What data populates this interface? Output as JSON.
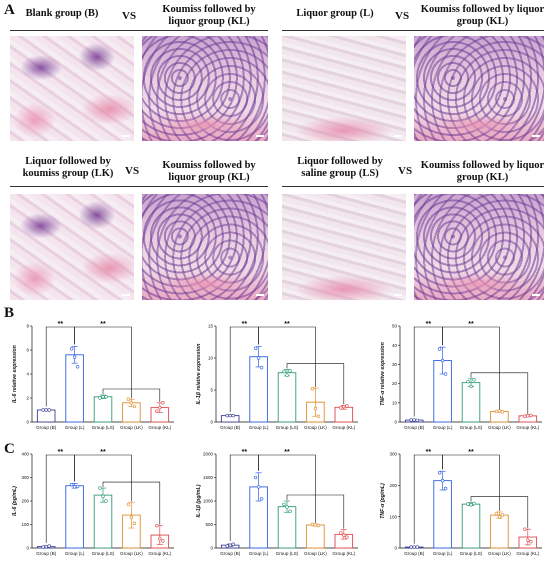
{
  "panels": {
    "A": "A",
    "B": "B",
    "C": "C"
  },
  "histology": {
    "vs": "VS",
    "rows": [
      {
        "left_pair": [
          "Blank group (B)",
          "Koumiss followed by liquor group (KL)"
        ],
        "right_pair": [
          "Liquor group (L)",
          "Koumiss followed by liquor group (KL)"
        ]
      },
      {
        "left_pair": [
          "Liquor followed by koumiss group (LK)",
          "Koumiss followed by liquor group (KL)"
        ],
        "right_pair": [
          "Liquor followed by saline group (LS)",
          "Koumiss followed by liquor group (KL)"
        ]
      }
    ]
  },
  "chart_data": [
    {
      "id": "B1",
      "type": "bar",
      "ylabel": "IL-6 relative expression",
      "categories": [
        "Group (B)",
        "Group (L)",
        "Group (LS)",
        "Group (LK)",
        "Group (KL)"
      ],
      "values": [
        1.0,
        5.6,
        2.1,
        1.6,
        1.2
      ],
      "errors": [
        0.05,
        0.7,
        0.15,
        0.3,
        0.4
      ],
      "points": [
        [
          1.0,
          1.0,
          1.0
        ],
        [
          6.1,
          5.4,
          4.6
        ],
        [
          2.0,
          2.1,
          2.1
        ],
        [
          1.9,
          1.6,
          1.3
        ],
        [
          0.9,
          1.2,
          1.6
        ]
      ],
      "ylim": [
        0,
        8
      ],
      "yticks": [
        0,
        2,
        4,
        6,
        8
      ],
      "ytick_labels": [
        "0",
        "2",
        "4",
        "6",
        "8"
      ],
      "significance": [
        "**",
        "**"
      ]
    },
    {
      "id": "B2",
      "type": "bar",
      "ylabel": "IL-1β relative expression",
      "categories": [
        "Group (B)",
        "Group (L)",
        "Group (LS)",
        "Group (LK)",
        "Group (KL)"
      ],
      "values": [
        1.0,
        10.2,
        7.7,
        3.1,
        2.3
      ],
      "errors": [
        0.1,
        1.6,
        0.5,
        2.2,
        0.3
      ],
      "points": [
        [
          1.0,
          1.0,
          1.0
        ],
        [
          11.5,
          10.0,
          8.5
        ],
        [
          7.9,
          7.3,
          8.0
        ],
        [
          5.2,
          2.1,
          0.9
        ],
        [
          2.2,
          2.4,
          2.5
        ]
      ],
      "ylim": [
        0,
        15
      ],
      "yticks": [
        0,
        5,
        10,
        15
      ],
      "ytick_labels": [
        "0",
        "5",
        "10",
        "15"
      ],
      "significance": [
        "**",
        "**"
      ]
    },
    {
      "id": "B3",
      "type": "bar",
      "ylabel": "TNF-α relative expression",
      "categories": [
        "Group (B)",
        "Group (L)",
        "Group (LS)",
        "Group (LK)",
        "Group (KL)"
      ],
      "values": [
        1.0,
        32.0,
        20.5,
        5.5,
        3.2
      ],
      "errors": [
        0.3,
        7.0,
        2.0,
        0.4,
        0.5
      ],
      "points": [
        [
          1.0,
          1.1,
          0.9
        ],
        [
          38.0,
          32.0,
          25.0
        ],
        [
          21.0,
          18.5,
          22.0
        ],
        [
          5.5,
          5.7,
          5.3
        ],
        [
          3.0,
          3.2,
          3.4
        ]
      ],
      "ylim": [
        0,
        50
      ],
      "yticks": [
        0,
        10,
        20,
        30,
        40,
        50
      ],
      "ytick_labels": [
        "0",
        "10",
        "20",
        "30",
        "40",
        "50"
      ],
      "significance": [
        "**",
        "**"
      ]
    },
    {
      "id": "C1",
      "type": "bar",
      "ylabel": "IL-6 (pg/mL)",
      "categories": [
        "Group (B)",
        "Group (L)",
        "Group (LS)",
        "Group (LK)",
        "Group (KL)"
      ],
      "values": [
        6,
        265,
        225,
        140,
        55
      ],
      "errors": [
        3,
        10,
        30,
        55,
        40
      ],
      "points": [
        [
          4,
          6,
          8
        ],
        [
          270,
          260,
          262
        ],
        [
          255,
          220,
          200
        ],
        [
          185,
          130,
          105
        ],
        [
          95,
          40,
          30
        ]
      ],
      "ylim": [
        0,
        400
      ],
      "yticks": [
        0,
        100,
        200,
        300,
        400
      ],
      "ytick_labels": [
        "0",
        "100",
        "200",
        "300",
        "400"
      ],
      "significance": [
        "**",
        "**"
      ]
    },
    {
      "id": "C2",
      "type": "bar",
      "ylabel": "IL-1β (pg/mL)",
      "categories": [
        "Group (B)",
        "Group (L)",
        "Group (LS)",
        "Group (LK)",
        "Group (KL)"
      ],
      "values": [
        60,
        1300,
        880,
        490,
        290
      ],
      "errors": [
        25,
        300,
        120,
        20,
        100
      ],
      "points": [
        [
          40,
          60,
          80
        ],
        [
          1500,
          1300,
          1050
        ],
        [
          930,
          870,
          780
        ],
        [
          500,
          490,
          480
        ],
        [
          320,
          270,
          230
        ]
      ],
      "ylim": [
        0,
        2000
      ],
      "yticks": [
        0,
        500,
        1000,
        1500,
        2000
      ],
      "ytick_labels": [
        "0",
        "500",
        "1000",
        "1500",
        "2000"
      ],
      "significance": [
        "**",
        "**"
      ]
    },
    {
      "id": "C3",
      "type": "bar",
      "ylabel": "TNF-α (pg/mL)",
      "categories": [
        "Group (B)",
        "Group (L)",
        "Group (LS)",
        "Group (LK)",
        "Group (KL)"
      ],
      "values": [
        3,
        215,
        140,
        105,
        35
      ],
      "errors": [
        1,
        30,
        5,
        10,
        25
      ],
      "points": [
        [
          3,
          3,
          3
        ],
        [
          240,
          215,
          190
        ],
        [
          140,
          138,
          142
        ],
        [
          110,
          100,
          105
        ],
        [
          60,
          25,
          20
        ]
      ],
      "ylim": [
        0,
        300
      ],
      "yticks": [
        0,
        100,
        200,
        300
      ],
      "ytick_labels": [
        "0",
        "100",
        "200",
        "300"
      ],
      "significance": [
        "**",
        "**"
      ]
    }
  ],
  "colors": {
    "group_b": "#3b3f96",
    "group_l": "#2f5fe6",
    "group_ls": "#2f9a7c",
    "group_lk": "#e08b2b",
    "group_kl": "#e0474a"
  }
}
